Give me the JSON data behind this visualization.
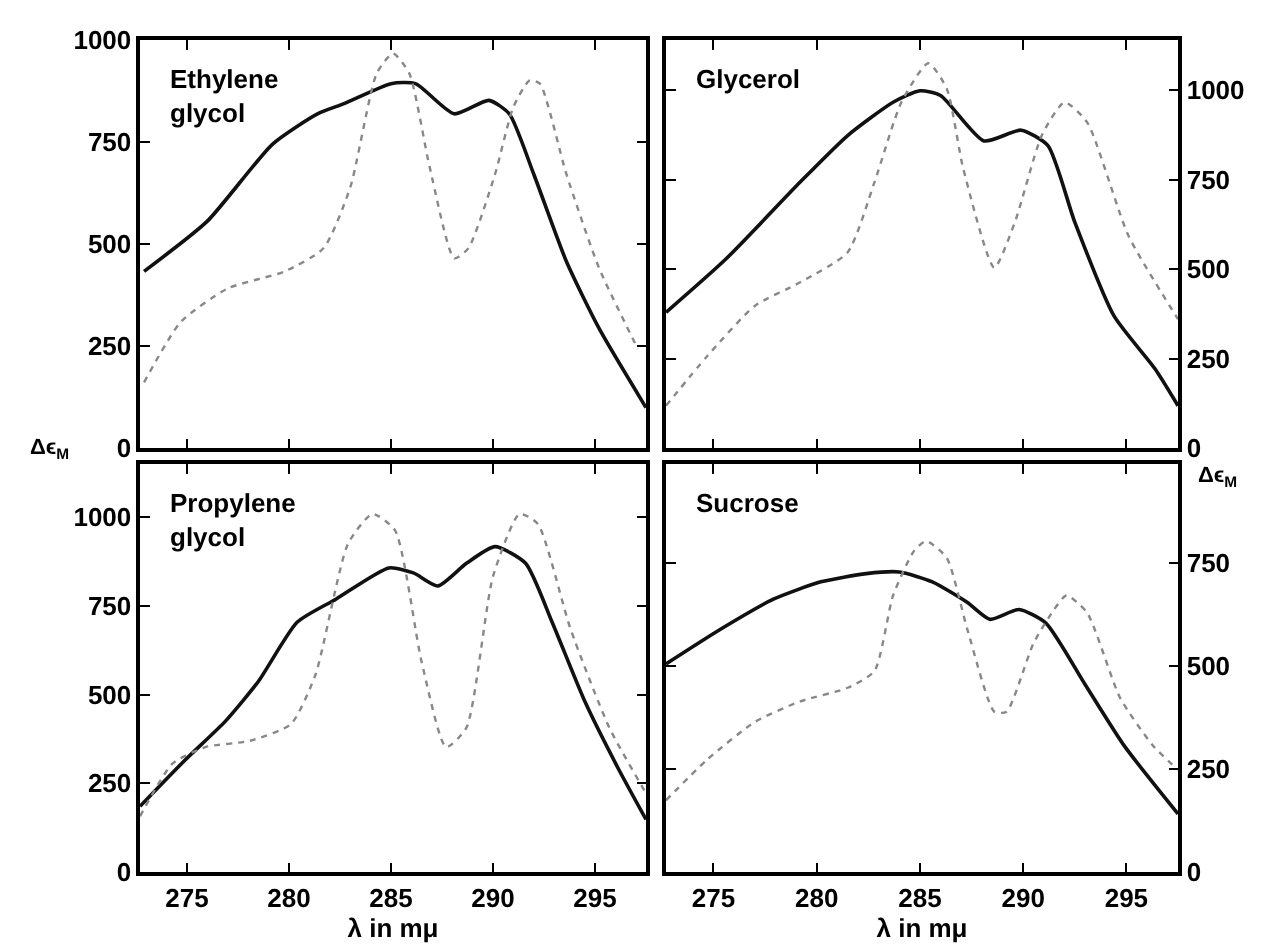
{
  "chart_data": [
    {
      "type": "line",
      "title": "Ethylene\nglycol",
      "ylabel": "Δϵ$_{M}$",
      "tick_labels": "y",
      "xlim": [
        272.7,
        297.5
      ],
      "xticks": [
        275,
        280,
        285,
        290,
        295
      ],
      "ylim": [
        0,
        1000
      ],
      "yticks": [
        0,
        250,
        500,
        750,
        1000
      ],
      "marker": "none",
      "series": [
        {
          "color": "#111111",
          "line_style": "solid",
          "x": [
            272.9,
            276,
            279.2,
            281.4,
            282.7,
            285,
            286.2,
            288.1,
            289.8,
            290.8,
            292,
            293.6,
            295.2,
            297.5
          ],
          "values": [
            433,
            556,
            745,
            819,
            844,
            893,
            893,
            819,
            852,
            819,
            671,
            457,
            293,
            99
          ]
        },
        {
          "color": "#888888",
          "line_style": "dotted",
          "x": [
            272.9,
            274.7,
            277,
            279.8,
            281.7,
            283,
            284.3,
            285.1,
            285.9,
            286.9,
            288.1,
            288.8,
            290.1,
            291,
            291.8,
            292.3,
            293.6,
            295.2,
            297.1
          ],
          "values": [
            161,
            309,
            391,
            433,
            490,
            638,
            918,
            967,
            918,
            688,
            465,
            490,
            671,
            836,
            901,
            893,
            671,
            441,
            243
          ]
        }
      ]
    },
    {
      "type": "line",
      "title": "Glycerol",
      "ylabel": "Δϵ$_{M}$",
      "tick_labels": "y",
      "xlim": [
        272.7,
        297.5
      ],
      "xticks": [
        275,
        280,
        285,
        290,
        295
      ],
      "ylim": [
        0,
        1140
      ],
      "yticks": [
        0,
        250,
        500,
        750,
        1000
      ],
      "marker": "none",
      "series": [
        {
          "color": "#111111",
          "line_style": "solid",
          "x": [
            272.7,
            275.6,
            279.2,
            281.5,
            283.7,
            285,
            286,
            288.1,
            289.9,
            291.2,
            292.5,
            294.4,
            296.4,
            297.5
          ],
          "values": [
            379,
            528,
            743,
            873,
            966,
            998,
            985,
            858,
            888,
            845,
            631,
            369,
            220,
            118
          ]
        },
        {
          "color": "#888888",
          "line_style": "dotted",
          "x": [
            272.7,
            274.7,
            277,
            279.2,
            281.5,
            282.8,
            284.1,
            285.4,
            286.3,
            287.1,
            288.6,
            289.6,
            290.9,
            292,
            293.1,
            295.1,
            297.5
          ],
          "values": [
            118,
            257,
            397,
            463,
            547,
            743,
            966,
            1075,
            1004,
            780,
            504,
            631,
            873,
            966,
            910,
            593,
            360
          ]
        }
      ]
    },
    {
      "type": "line",
      "title": "Propylene\nglycol",
      "xlabel": "λ in mμ",
      "xlim": [
        272.7,
        297.5
      ],
      "xticks": [
        275,
        280,
        285,
        290,
        295
      ],
      "ylim": [
        0,
        1150
      ],
      "yticks": [
        0,
        250,
        500,
        750,
        1000
      ],
      "marker": "none",
      "series": [
        {
          "color": "#111111",
          "line_style": "solid",
          "x": [
            272.7,
            274.9,
            276.9,
            278.5,
            280.4,
            282.3,
            284.9,
            286.1,
            287.3,
            288.7,
            290.1,
            291.6,
            292.9,
            294.5,
            296.1,
            297.5
          ],
          "values": [
            185,
            315,
            426,
            537,
            704,
            769,
            857,
            843,
            806,
            870,
            917,
            870,
            704,
            481,
            296,
            148
          ]
        },
        {
          "color": "#888888",
          "line_style": "dotted",
          "x": [
            272.7,
            274.3,
            275.9,
            278.1,
            280.1,
            281.3,
            282.9,
            284.1,
            285.2,
            286.5,
            287.7,
            288.7,
            290,
            291.3,
            292.2,
            293.8,
            295.7,
            297.5
          ],
          "values": [
            157,
            306,
            352,
            370,
            417,
            556,
            926,
            1009,
            963,
            593,
            352,
            407,
            833,
            1009,
            981,
            685,
            407,
            222
          ]
        }
      ]
    },
    {
      "type": "line",
      "title": "Sucrose",
      "xlabel": "λ in mμ",
      "xlim": [
        272.7,
        297.5
      ],
      "xticks": [
        275,
        280,
        285,
        290,
        295
      ],
      "ylim": [
        0,
        990
      ],
      "yticks": [
        0,
        250,
        500,
        750
      ],
      "marker": "none",
      "series": [
        {
          "color": "#111111",
          "line_style": "solid",
          "x": [
            272.7,
            275.3,
            277.9,
            280.2,
            282.4,
            284,
            285.6,
            287.3,
            288.4,
            289.8,
            291.1,
            293,
            294.9,
            297.5
          ],
          "values": [
            505,
            588,
            662,
            704,
            724,
            728,
            704,
            654,
            613,
            637,
            604,
            455,
            306,
            141
          ]
        },
        {
          "color": "#888888",
          "line_style": "dotted",
          "x": [
            272.7,
            274.7,
            277,
            279.2,
            281.5,
            282.8,
            283.7,
            284.7,
            285.3,
            286.3,
            287.3,
            288.6,
            289.2,
            290.5,
            291.5,
            292.1,
            293.1,
            294.7,
            296.3,
            297.5
          ],
          "values": [
            174,
            273,
            364,
            414,
            447,
            488,
            671,
            778,
            803,
            762,
            588,
            389,
            389,
            555,
            637,
            671,
            629,
            422,
            306,
            248
          ]
        }
      ]
    }
  ]
}
